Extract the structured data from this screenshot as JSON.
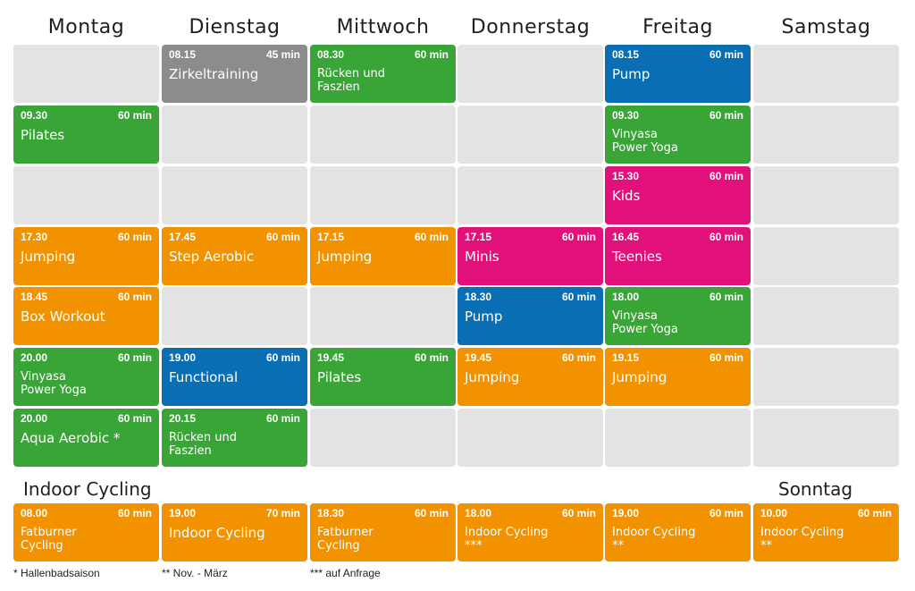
{
  "days": [
    "Montag",
    "Dienstag",
    "Mittwoch",
    "Donnerstag",
    "Freitag",
    "Samstag"
  ],
  "colors": {
    "empty": "#e3e3e3",
    "grey": "#8c8c8c",
    "green": "#3aa537",
    "blue": "#0a6eb4",
    "magenta": "#e2107b",
    "orange": "#f39200"
  },
  "schedule": [
    [
      null,
      {
        "time": "08.15",
        "dur": "45 min",
        "name1": "Zirkeltraining",
        "name2": "",
        "color": "grey"
      },
      {
        "time": "08.30",
        "dur": "60 min",
        "name1": "Rücken und",
        "name2": "Faszien",
        "color": "green"
      },
      null,
      {
        "time": "08.15",
        "dur": "60 min",
        "name1": "Pump",
        "name2": "",
        "color": "blue"
      },
      null
    ],
    [
      {
        "time": "09.30",
        "dur": "60 min",
        "name1": "Pilates",
        "name2": "",
        "color": "green"
      },
      null,
      null,
      null,
      {
        "time": "09.30",
        "dur": "60 min",
        "name1": "Vinyasa",
        "name2": "Power Yoga",
        "color": "green"
      },
      null
    ],
    [
      null,
      null,
      null,
      null,
      {
        "time": "15.30",
        "dur": "60 min",
        "name1": "Kids",
        "name2": "",
        "color": "magenta"
      },
      null
    ],
    [
      {
        "time": "17.30",
        "dur": "60 min",
        "name1": "Jumping",
        "name2": "",
        "color": "orange"
      },
      {
        "time": "17.45",
        "dur": "60 min",
        "name1": "Step Aerobic",
        "name2": "",
        "color": "orange"
      },
      {
        "time": "17.15",
        "dur": "60 min",
        "name1": "Jumping",
        "name2": "",
        "color": "orange"
      },
      {
        "time": "17.15",
        "dur": "60 min",
        "name1": "Minis",
        "name2": "",
        "color": "magenta"
      },
      {
        "time": "16.45",
        "dur": "60 min",
        "name1": "Teenies",
        "name2": "",
        "color": "magenta"
      },
      null
    ],
    [
      {
        "time": "18.45",
        "dur": "60 min",
        "name1": "Box Workout",
        "name2": "",
        "color": "orange"
      },
      null,
      null,
      {
        "time": "18.30",
        "dur": "60 min",
        "name1": "Pump",
        "name2": "",
        "color": "blue"
      },
      {
        "time": "18.00",
        "dur": "60 min",
        "name1": "Vinyasa",
        "name2": "Power Yoga",
        "color": "green"
      },
      null
    ],
    [
      {
        "time": "20.00",
        "dur": "60 min",
        "name1": "Vinyasa",
        "name2": "Power Yoga",
        "color": "green"
      },
      {
        "time": "19.00",
        "dur": "60 min",
        "name1": "Functional",
        "name2": "",
        "color": "blue"
      },
      {
        "time": "19.45",
        "dur": "60 min",
        "name1": "Pilates",
        "name2": "",
        "color": "green"
      },
      {
        "time": "19.45",
        "dur": "60 min",
        "name1": "Jumping",
        "name2": "",
        "color": "orange"
      },
      {
        "time": "19.15",
        "dur": "60 min",
        "name1": "Jumping",
        "name2": "",
        "color": "orange"
      },
      null
    ],
    [
      {
        "time": "20.00",
        "dur": "60 min",
        "name1": "Aqua Aerobic *",
        "name2": "",
        "color": "green"
      },
      {
        "time": "20.15",
        "dur": "60 min",
        "name1": "Rücken und",
        "name2": "Faszien",
        "color": "green"
      },
      null,
      null,
      null,
      null
    ]
  ],
  "cycling": {
    "title": "Indoor Cycling",
    "sunday_title": "Sonntag",
    "cells": [
      {
        "time": "08.00",
        "dur": "60 min",
        "name1": "Fatburner",
        "name2": "Cycling",
        "color": "orange"
      },
      {
        "time": "19.00",
        "dur": "70 min",
        "name1": "Indoor Cycling",
        "name2": "",
        "color": "orange"
      },
      {
        "time": "18.30",
        "dur": "60 min",
        "name1": "Fatburner",
        "name2": "Cycling",
        "color": "orange"
      },
      {
        "time": "18.00",
        "dur": "60 min",
        "name1": "Indoor Cycling",
        "name2": "***",
        "color": "orange"
      },
      {
        "time": "19.00",
        "dur": "60 min",
        "name1": "Indoor Cycling",
        "name2": "**",
        "color": "orange"
      },
      {
        "time": "10.00",
        "dur": "60 min",
        "name1": "Indoor Cycling",
        "name2": "**",
        "color": "orange"
      }
    ]
  },
  "footnotes": [
    "* Hallenbadsaison",
    "** Nov. - März",
    "*** auf Anfrage"
  ]
}
